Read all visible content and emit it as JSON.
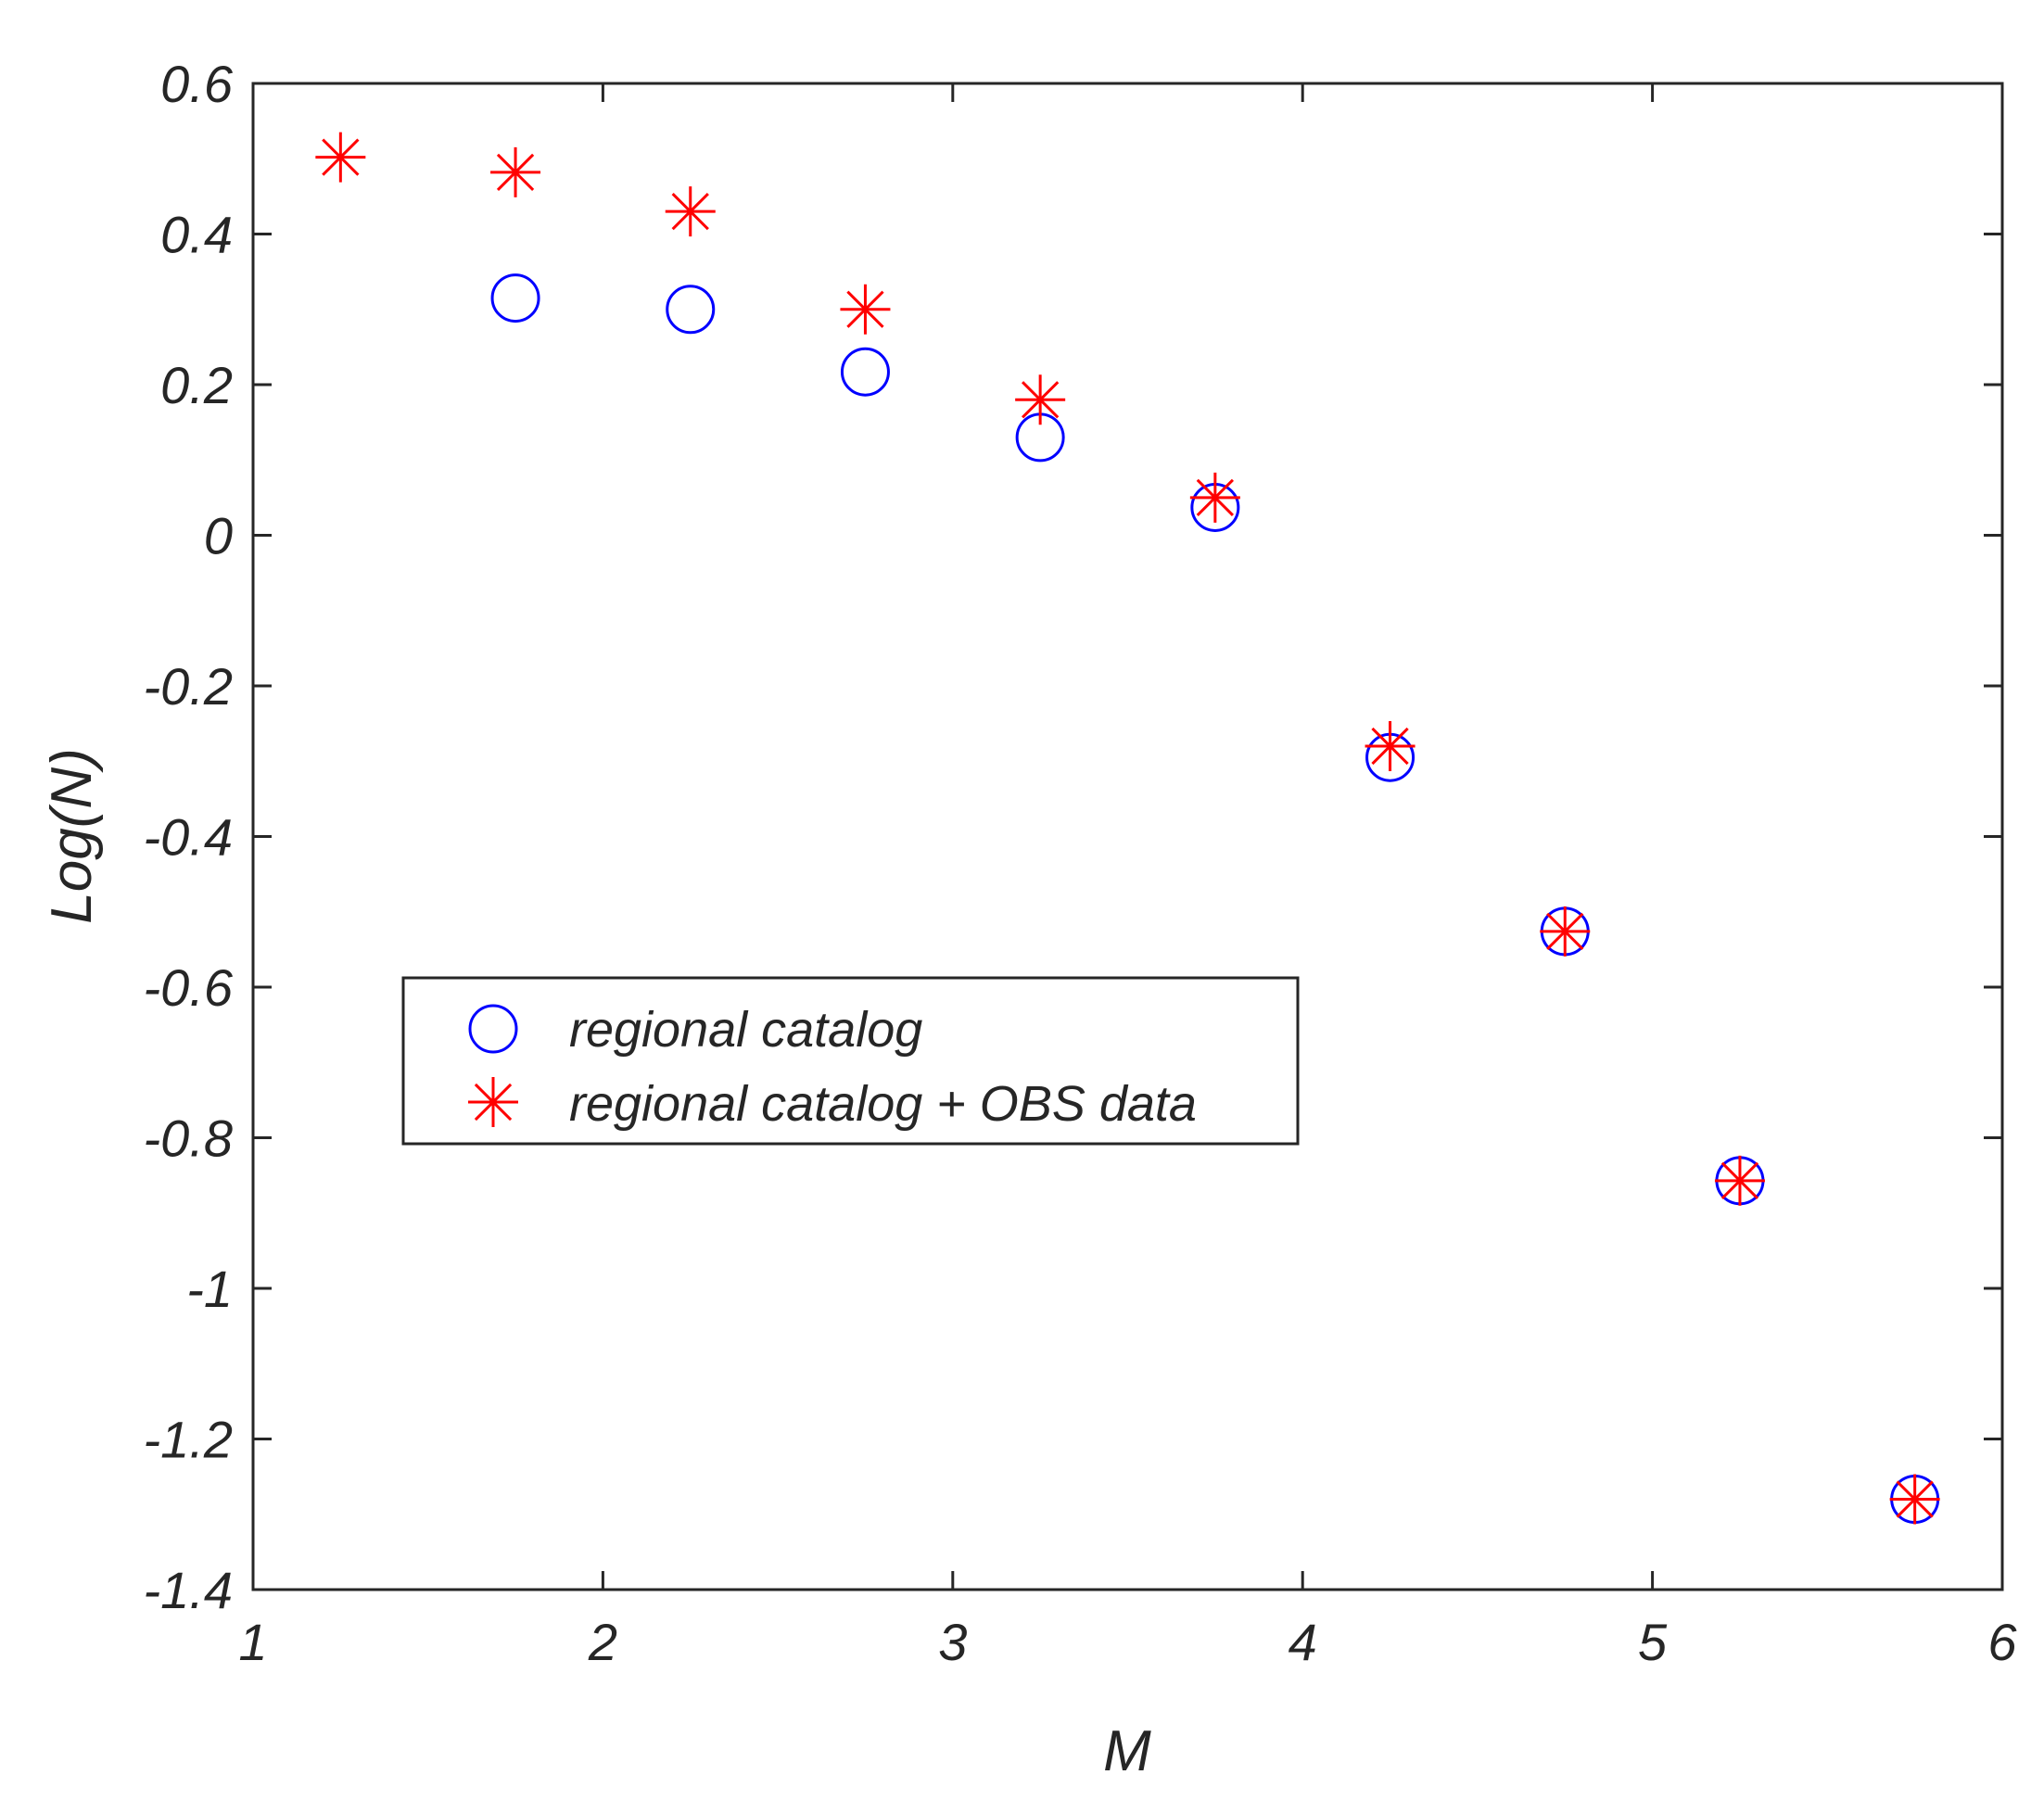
{
  "chart_data": {
    "type": "scatter",
    "title": "",
    "xlabel": "M",
    "ylabel": "Log(N)",
    "xlim": [
      1,
      6
    ],
    "ylim": [
      -1.4,
      0.6
    ],
    "xticks": [
      1,
      2,
      3,
      4,
      5,
      6
    ],
    "xtick_labels": [
      "1",
      "2",
      "3",
      "4",
      "5",
      "6"
    ],
    "yticks": [
      0.6,
      0.4,
      0.2,
      0,
      -0.2,
      -0.4,
      -0.6,
      -0.8,
      -1,
      -1.2,
      -1.4
    ],
    "ytick_labels": [
      "0.6",
      "0.4",
      "0.2",
      "0",
      "-0.2",
      "-0.4",
      "-0.6",
      "-0.8",
      "-1",
      "-1.2",
      "-1.4"
    ],
    "grid": false,
    "legend_position": "center-left",
    "series": [
      {
        "name": "regional catalog",
        "marker": "circle",
        "color": "#0000ff",
        "x": [
          1.75,
          2.25,
          2.75,
          3.25,
          3.75,
          4.25,
          4.75,
          5.25,
          5.75
        ],
        "y": [
          0.315,
          0.3,
          0.217,
          0.13,
          0.037,
          -0.295,
          -0.526,
          -0.857,
          -1.28
        ]
      },
      {
        "name": "regional catalog + OBS data",
        "marker": "asterisk",
        "color": "#ff0000",
        "x": [
          1.25,
          1.75,
          2.25,
          2.75,
          3.25,
          3.75,
          4.25,
          4.75,
          5.25,
          5.75
        ],
        "y": [
          0.502,
          0.482,
          0.43,
          0.3,
          0.18,
          0.05,
          -0.28,
          -0.526,
          -0.857,
          -1.28
        ]
      }
    ]
  }
}
